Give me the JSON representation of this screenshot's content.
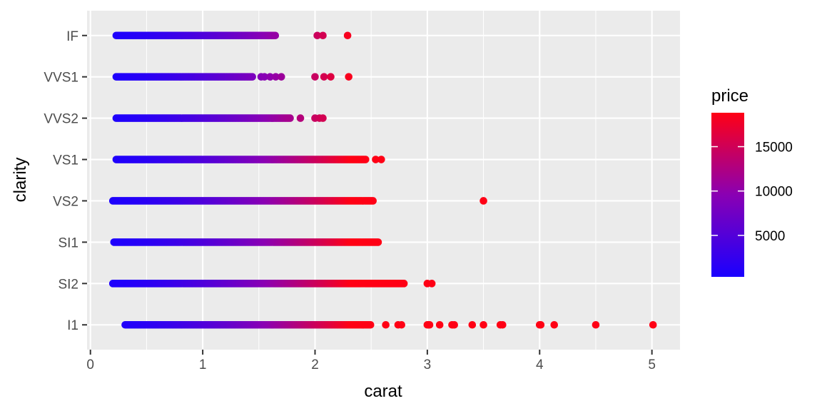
{
  "chart_data": {
    "type": "scatter",
    "title": "",
    "xlabel": "carat",
    "ylabel": "clarity",
    "xlim": [
      -0.03,
      5.25
    ],
    "x_ticks": [
      "0",
      "1",
      "2",
      "3",
      "4",
      "5"
    ],
    "categories": [
      "I1",
      "SI2",
      "SI1",
      "VS2",
      "VS1",
      "VVS2",
      "VVS1",
      "IF"
    ],
    "grid": true,
    "legend": {
      "title": "price",
      "position": "right",
      "type": "colorbar",
      "range": [
        326,
        18823
      ],
      "ticks": [
        5000,
        10000,
        15000
      ],
      "tick_labels": [
        "5000",
        "10000",
        "15000"
      ],
      "low_color": "#1a00ff",
      "mid_color": "#8a00b3",
      "high_color": "#ff0015"
    },
    "series": [
      {
        "category": "IF",
        "carat_range": [
          0.23,
          1.65
        ],
        "outliers": [
          2.02,
          2.07,
          2.29
        ]
      },
      {
        "category": "VVS1",
        "carat_range": [
          0.23,
          1.45
        ],
        "outliers": [
          1.52,
          1.55,
          1.6,
          1.65,
          1.7,
          2.0,
          2.08,
          2.14,
          2.3
        ]
      },
      {
        "category": "VVS2",
        "carat_range": [
          0.23,
          1.78
        ],
        "outliers": [
          1.87,
          2.0,
          2.04,
          2.07
        ]
      },
      {
        "category": "VS1",
        "carat_range": [
          0.23,
          2.45
        ],
        "outliers": [
          2.54,
          2.59
        ]
      },
      {
        "category": "VS2",
        "carat_range": [
          0.2,
          2.52
        ],
        "outliers": [
          3.5
        ]
      },
      {
        "category": "SI1",
        "carat_range": [
          0.21,
          2.57
        ],
        "outliers": []
      },
      {
        "category": "SI2",
        "carat_range": [
          0.2,
          2.8
        ],
        "outliers": [
          3.0,
          3.04
        ]
      },
      {
        "category": "I1",
        "carat_range": [
          0.31,
          2.5
        ],
        "outliers": [
          2.63,
          2.74,
          2.77,
          3.0,
          3.01,
          3.02,
          3.11,
          3.22,
          3.24,
          3.4,
          3.5,
          3.65,
          3.67,
          4.0,
          4.01,
          4.13,
          4.5,
          5.01
        ]
      }
    ]
  }
}
